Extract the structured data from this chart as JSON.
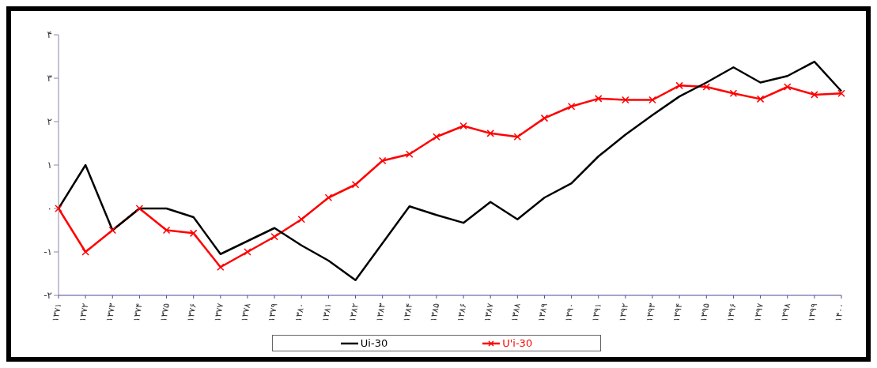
{
  "chart_data": {
    "type": "line",
    "categories": [
      "۱۳۷۱",
      "۱۳۷۲",
      "۱۳۷۳",
      "۱۳۷۴",
      "۱۳۷۵",
      "۱۳۷۶",
      "۱۳۷۷",
      "۱۳۷۸",
      "۱۳۷۹",
      "۱۳۸۰",
      "۱۳۸۱",
      "۱۳۸۲",
      "۱۳۸۳",
      "۱۳۸۴",
      "۱۳۸۵",
      "۱۳۸۶",
      "۱۳۸۷",
      "۱۳۸۸",
      "۱۳۸۹",
      "۱۳۹۰",
      "۱۳۹۱",
      "۱۳۹۲",
      "۱۳۹۳",
      "۱۳۹۴",
      "۱۳۹۵",
      "۱۳۹۶",
      "۱۳۹۷",
      "۱۳۹۸",
      "۱۳۹۹",
      "۱۴۰۰"
    ],
    "series": [
      {
        "name": "Ui-30",
        "color": "#000000",
        "marker": "none",
        "values": [
          0,
          1.0,
          -0.5,
          0,
          0,
          -0.2,
          -1.05,
          -0.75,
          -0.45,
          -0.85,
          -1.2,
          -1.65,
          -0.8,
          0.05,
          -0.15,
          -0.33,
          0.15,
          -0.25,
          0.25,
          0.58,
          1.2,
          1.7,
          2.15,
          2.58,
          2.9,
          3.25,
          2.9,
          3.05,
          3.38,
          2.7
        ]
      },
      {
        "name": "U'i-30",
        "color": "#ff0000",
        "marker": "cross",
        "values": [
          0,
          -1.0,
          -0.5,
          0,
          -0.5,
          -0.57,
          -1.35,
          -1.0,
          -0.65,
          -0.25,
          0.25,
          0.55,
          1.1,
          1.25,
          1.65,
          1.9,
          1.73,
          1.65,
          2.08,
          2.35,
          2.53,
          2.5,
          2.5,
          2.83,
          2.8,
          2.65,
          2.52,
          2.8,
          2.62,
          2.65
        ]
      }
    ],
    "ylim": [
      -2,
      4
    ],
    "yticks": [
      {
        "value": -2,
        "label": "-۲"
      },
      {
        "value": -1,
        "label": "-۱"
      },
      {
        "value": 0,
        "label": "۰"
      },
      {
        "value": 1,
        "label": "۱"
      },
      {
        "value": 2,
        "label": "۲"
      },
      {
        "value": 3,
        "label": "۳"
      },
      {
        "value": 4,
        "label": "۴"
      }
    ],
    "grid": false,
    "legend": "bottom"
  }
}
